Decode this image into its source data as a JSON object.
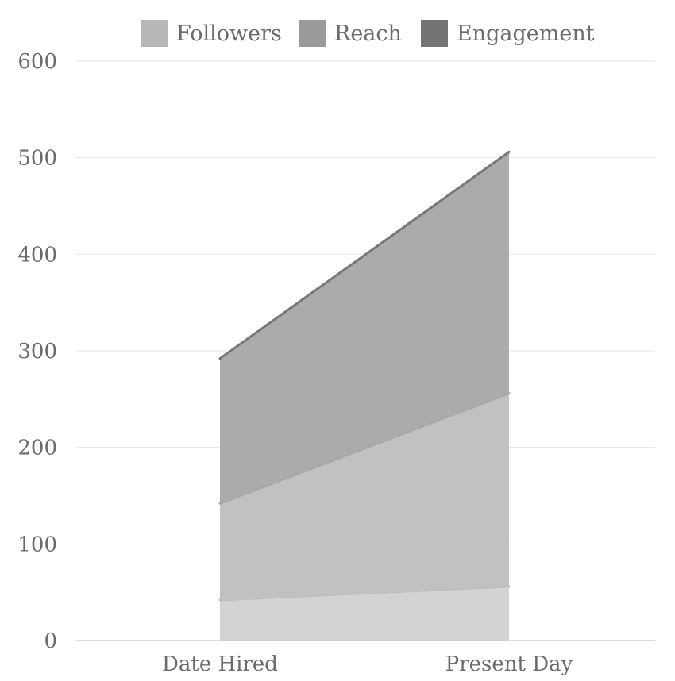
{
  "chart_data": {
    "type": "area",
    "stacked": true,
    "categories": [
      "Date Hired",
      "Present Day"
    ],
    "series": [
      {
        "name": "Followers",
        "values": [
          42,
          56
        ],
        "color": "#d3d3d3",
        "line_color": "#bdbdbd",
        "legend_color": "#b8b8b8"
      },
      {
        "name": "Reach",
        "values": [
          100,
          200
        ],
        "color": "#c1c1c1",
        "line_color": "#a6a6a6",
        "legend_color": "#9a9a9a"
      },
      {
        "name": "Engagement",
        "values": [
          150,
          250
        ],
        "color": "#ababab",
        "line_color": "#777777",
        "legend_color": "#747474"
      }
    ],
    "ylim": [
      0,
      600
    ],
    "yticks": [
      0,
      100,
      200,
      300,
      400,
      500,
      600
    ],
    "grid": true,
    "legend_position": "top-center"
  }
}
